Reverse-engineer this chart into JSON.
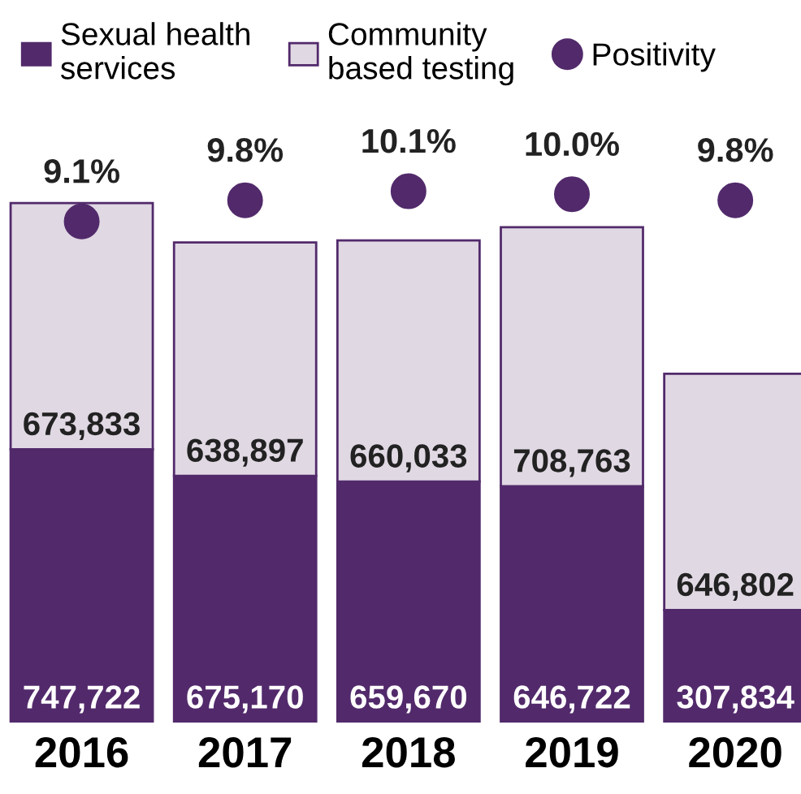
{
  "chart_data": {
    "type": "bar",
    "stacked": true,
    "categories": [
      "2016",
      "2017",
      "2018",
      "2019",
      "2020"
    ],
    "tick_labels": "x",
    "legend": "top",
    "grid": false,
    "series": [
      {
        "name": "Sexual health services",
        "color": "#522a6b",
        "values": [
          747722,
          675170,
          659670,
          646722,
          307834
        ],
        "value_labels": [
          "747,722",
          "675,170",
          "659,670",
          "646,722",
          "307,834"
        ]
      },
      {
        "name": "Community based testing",
        "color": "#e0d8e3",
        "values": [
          673833,
          638897,
          660033,
          708763,
          646802
        ],
        "value_labels": [
          "673,833",
          "638,897",
          "660,033",
          "708,763",
          "646,802"
        ]
      },
      {
        "name": "Positivity",
        "type": "scatter",
        "axis": "y2",
        "marker": "circle",
        "color": "#522a6b",
        "values": [
          9.1,
          9.8,
          10.1,
          10.0,
          9.8
        ],
        "value_labels": [
          "9.1%",
          "9.8%",
          "10.1%",
          "10.0%",
          "9.8%"
        ]
      }
    ]
  }
}
